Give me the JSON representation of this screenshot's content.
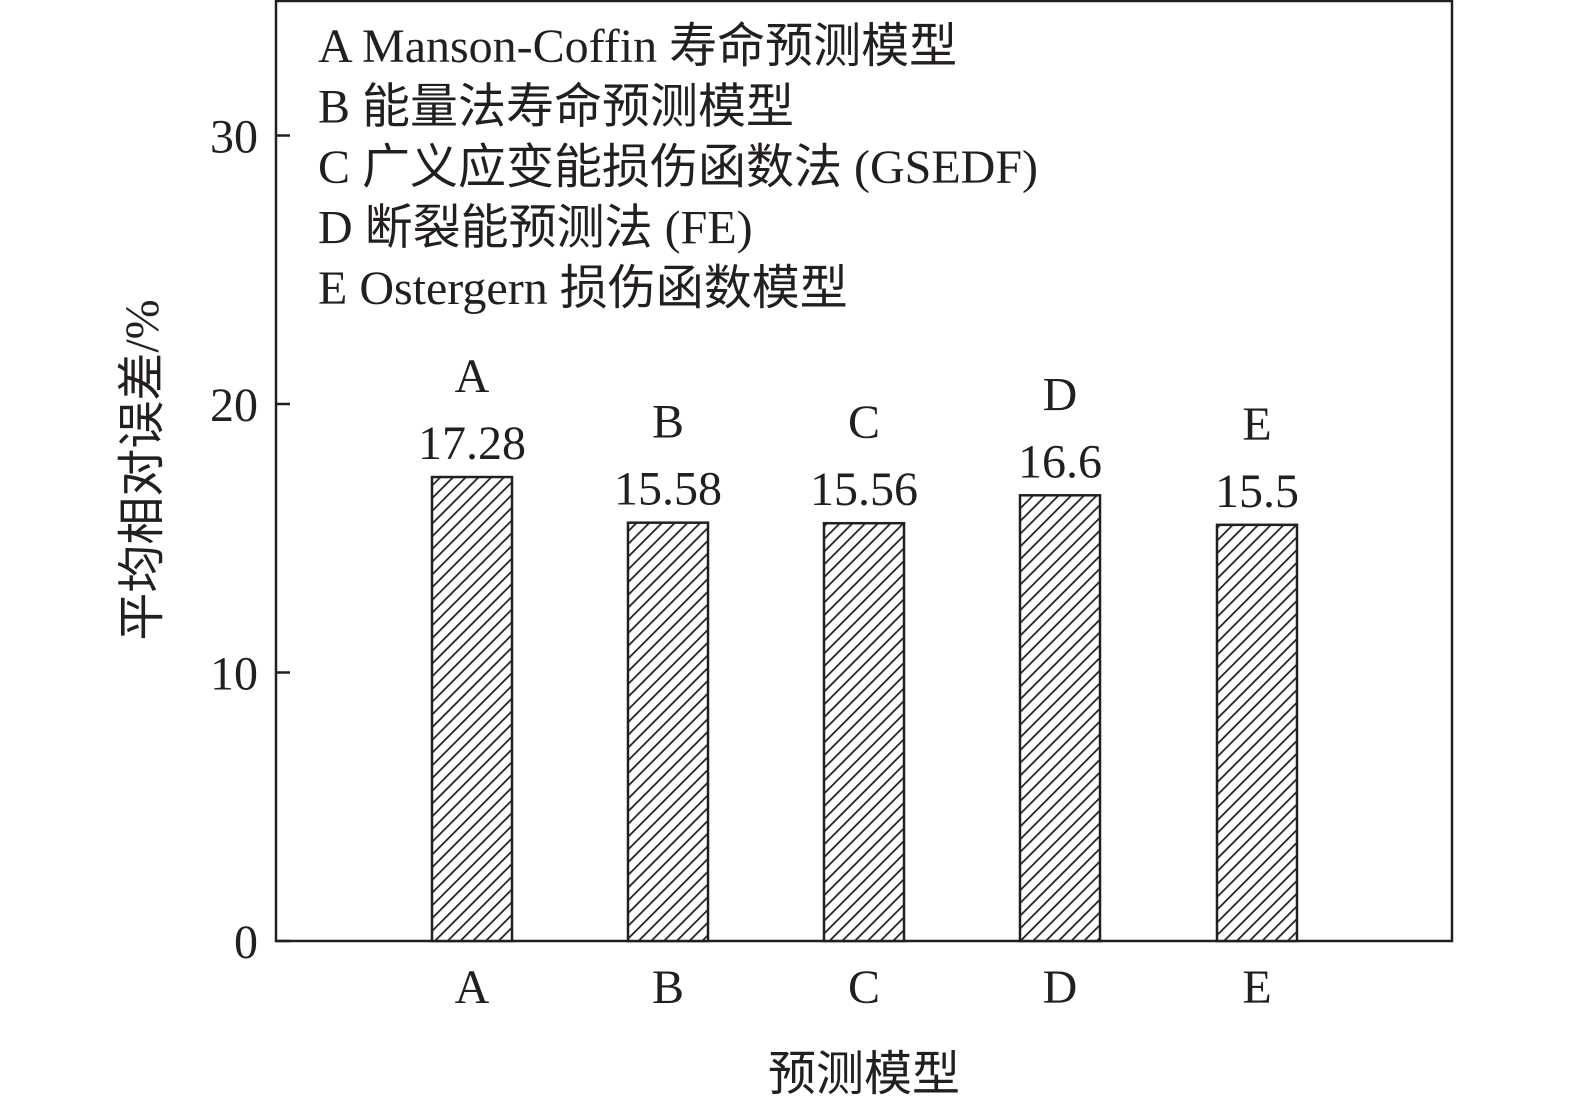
{
  "chart_data": {
    "type": "bar",
    "title": "",
    "xlabel": "预测模型",
    "ylabel": "平均相对误差/%",
    "categories": [
      "A",
      "B",
      "C",
      "D",
      "E"
    ],
    "values": [
      17.28,
      15.58,
      15.56,
      16.6,
      15.5
    ],
    "value_labels": [
      "17.28",
      "15.58",
      "15.56",
      "16.6",
      "15.5"
    ],
    "ylim": [
      0,
      35
    ],
    "yticks": [
      0,
      10,
      20,
      30
    ],
    "ytick_labels": [
      "0",
      "10",
      "20",
      "30"
    ],
    "grid": false,
    "bar_fill": "diagonal hatch",
    "colors": {
      "ink": "#231f20",
      "background": "#ffffff"
    },
    "legend_position": "top-left",
    "legend": [
      "A Manson-Coffin 寿命预测模型",
      "B 能量法寿命预测模型",
      "C 广义应变能损伤函数法 (GSEDF)",
      "D 断裂能预测法 (FE)",
      "E Ostergern 损伤函数模型"
    ]
  }
}
